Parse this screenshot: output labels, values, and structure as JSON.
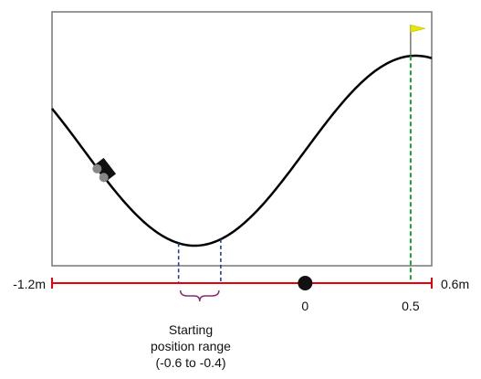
{
  "axis": {
    "min_label": "-1.2m",
    "max_label": "0.6m",
    "ticks": [
      {
        "value": 0,
        "label": "0"
      },
      {
        "value": 0.5,
        "label": "0.5"
      }
    ],
    "min": -1.2,
    "max": 0.6
  },
  "range_label": {
    "line1": "Starting",
    "line2": "position range",
    "line3": "(-0.6 to -0.4)"
  },
  "start_range": [
    -0.6,
    -0.4
  ],
  "goal_position": 0.5,
  "origin_position": 0,
  "car_position": -0.95,
  "colors": {
    "axis": "#e8000b",
    "curve": "#000000",
    "start_markers": "#1f3f9a",
    "goal_marker": "#1f9d3a",
    "brace": "#8a2a72",
    "flag": "#e6e600",
    "frame": "#777777",
    "car": "#111111",
    "wheel": "#888888"
  }
}
